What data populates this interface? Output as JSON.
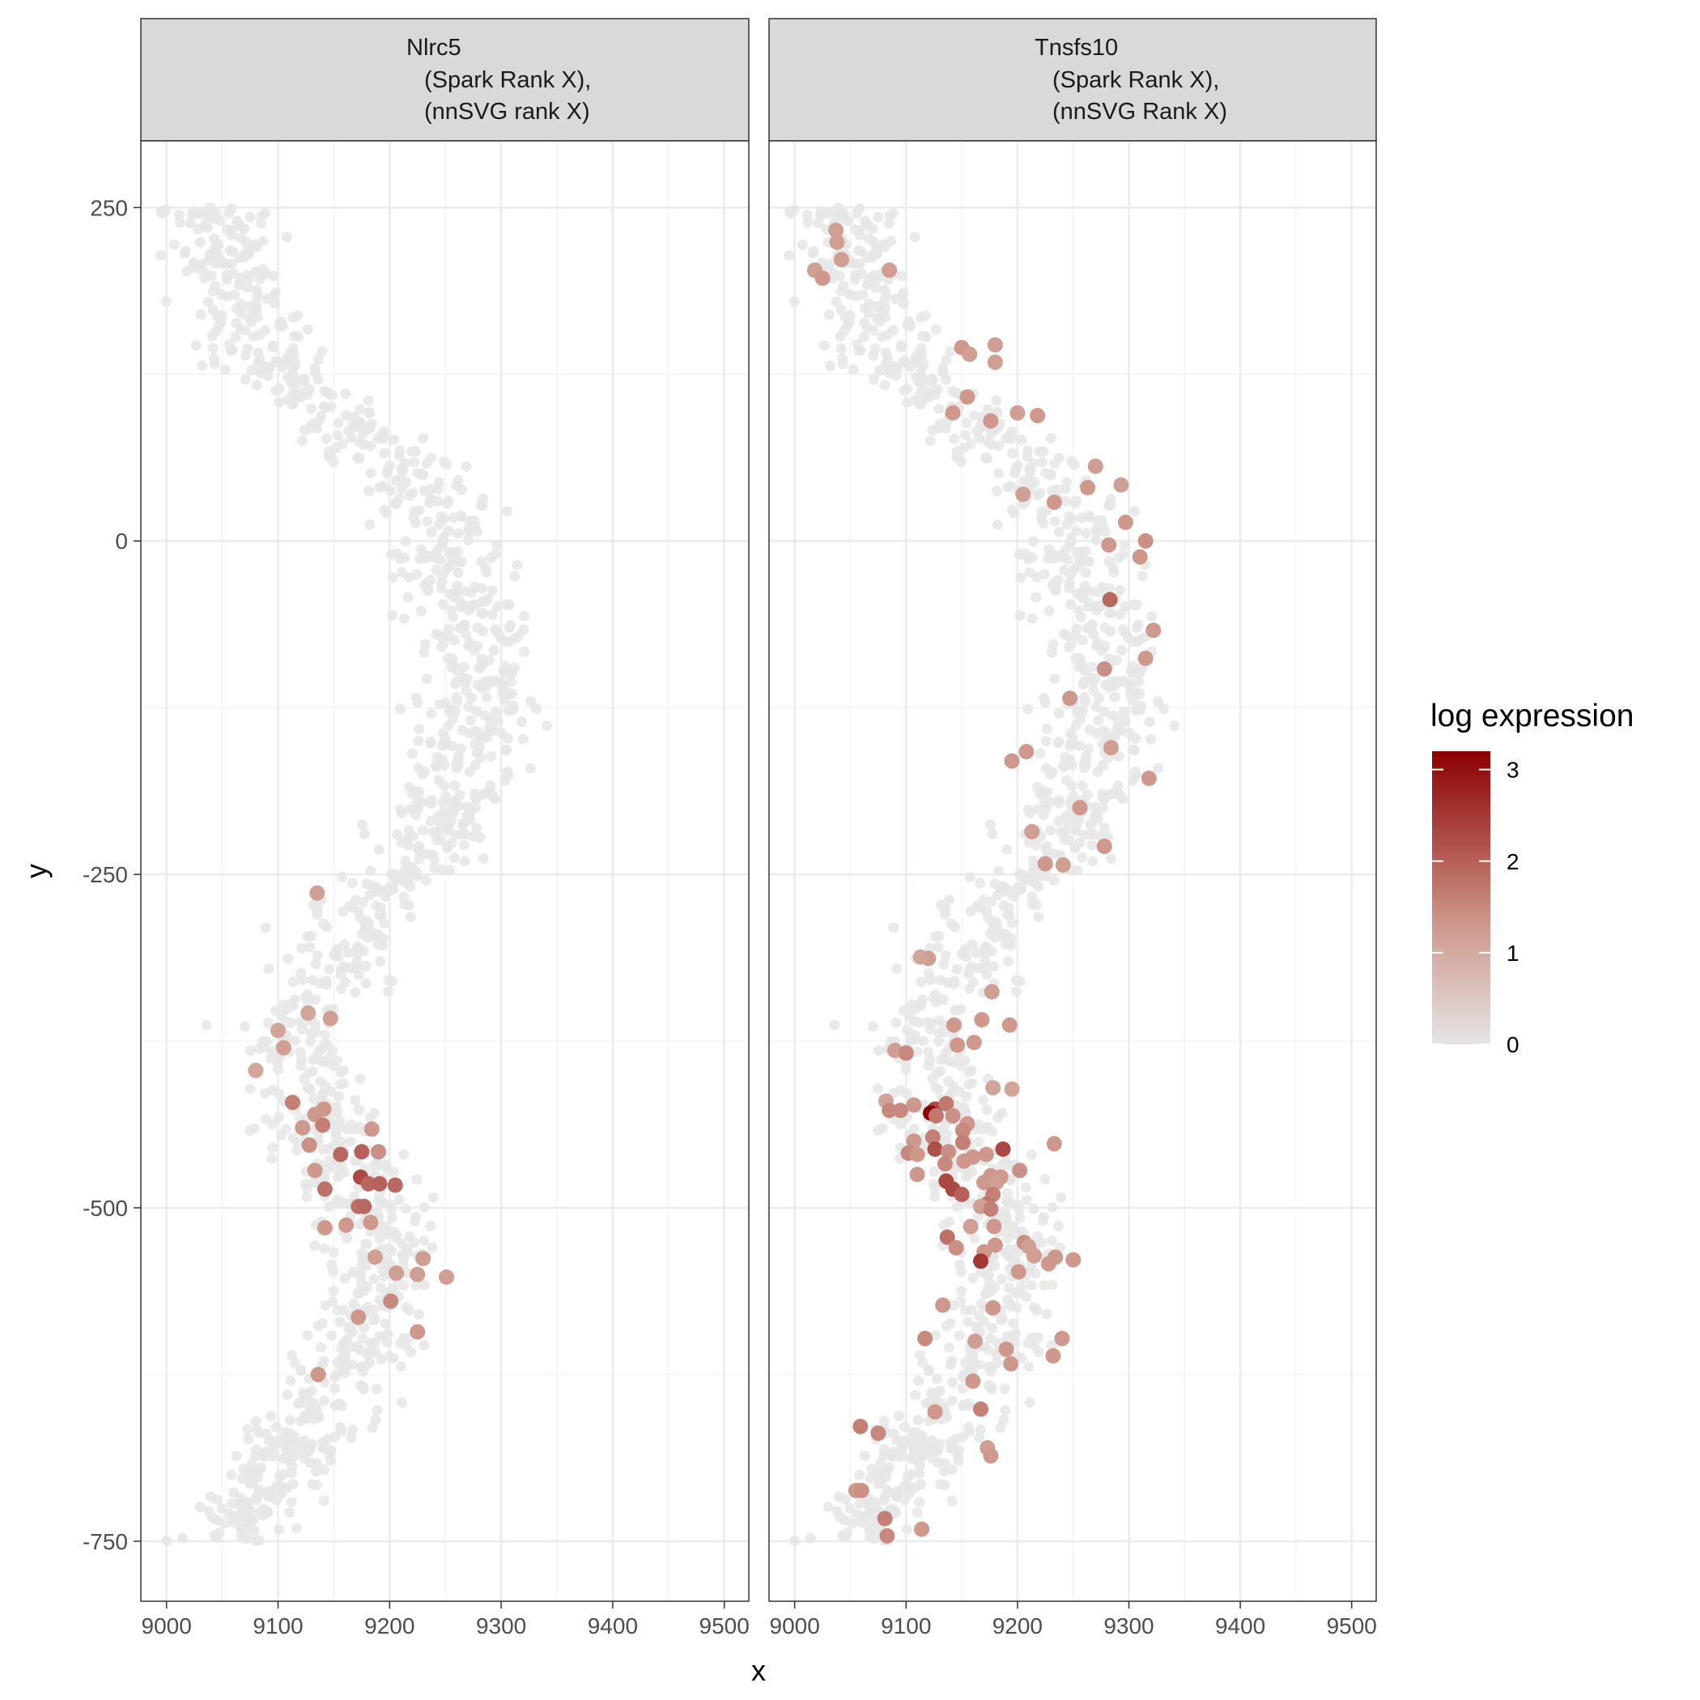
{
  "chart_data": {
    "type": "scatter",
    "facets": [
      {
        "title_lines": [
          "Nlrc5",
          "(Spark Rank X),",
          "(nnSVG rank X)"
        ],
        "points": [
          [
            9135,
            -264
          ],
          [
            9127,
            -354
          ],
          [
            9147,
            -358
          ],
          [
            9100,
            -367
          ],
          [
            9105,
            -380
          ],
          [
            9080,
            -397
          ],
          [
            9113,
            -421
          ],
          [
            9141,
            -426
          ],
          [
            9133,
            -430
          ],
          [
            9140,
            -438
          ],
          [
            9122,
            -440
          ],
          [
            9184,
            -441
          ],
          [
            9128,
            -453
          ],
          [
            9156,
            -460
          ],
          [
            9175,
            -458
          ],
          [
            9190,
            -458
          ],
          [
            9133,
            -472
          ],
          [
            9174,
            -477
          ],
          [
            9181,
            -482
          ],
          [
            9191,
            -482
          ],
          [
            9205,
            -483
          ],
          [
            9142,
            -486
          ],
          [
            9172,
            -499
          ],
          [
            9177,
            -499
          ],
          [
            9183,
            -511
          ],
          [
            9161,
            -513
          ],
          [
            9142,
            -515
          ],
          [
            9187,
            -537
          ],
          [
            9230,
            -538
          ],
          [
            9206,
            -549
          ],
          [
            9225,
            -550
          ],
          [
            9251,
            -552
          ],
          [
            9201,
            -570
          ],
          [
            9172,
            -582
          ],
          [
            9225,
            -593
          ],
          [
            9136,
            -625
          ]
        ],
        "values": [
          1.2,
          1.1,
          1.2,
          1.1,
          1.2,
          1.1,
          1.6,
          1.3,
          1.3,
          1.6,
          1.3,
          1.3,
          1.4,
          1.9,
          2.0,
          1.4,
          1.3,
          2.3,
          1.9,
          2.0,
          1.9,
          1.8,
          1.8,
          1.9,
          1.3,
          1.3,
          1.3,
          1.2,
          1.2,
          1.2,
          1.2,
          1.2,
          1.5,
          1.3,
          1.3,
          1.3
        ]
      },
      {
        "title_lines": [
          "Tnsfs10",
          "(Spark Rank X),",
          "(nnSVG Rank X)"
        ],
        "points": [
          [
            9037,
            233
          ],
          [
            9038,
            224
          ],
          [
            9042,
            211
          ],
          [
            9018,
            203
          ],
          [
            9025,
            197
          ],
          [
            9085,
            203
          ],
          [
            9150,
            145
          ],
          [
            9180,
            147
          ],
          [
            9157,
            140
          ],
          [
            9180,
            134
          ],
          [
            9155,
            108
          ],
          [
            9142,
            96
          ],
          [
            9200,
            96
          ],
          [
            9218,
            94
          ],
          [
            9176,
            90
          ],
          [
            9270,
            56
          ],
          [
            9293,
            42
          ],
          [
            9263,
            40
          ],
          [
            9205,
            35
          ],
          [
            9233,
            29
          ],
          [
            9297,
            14
          ],
          [
            9315,
            0
          ],
          [
            9282,
            -3
          ],
          [
            9310,
            -12
          ],
          [
            9283,
            -44
          ],
          [
            9322,
            -67
          ],
          [
            9315,
            -88
          ],
          [
            9278,
            -96
          ],
          [
            9247,
            -118
          ],
          [
            9284,
            -155
          ],
          [
            9208,
            -158
          ],
          [
            9195,
            -165
          ],
          [
            9318,
            -178
          ],
          [
            9256,
            -200
          ],
          [
            9213,
            -218
          ],
          [
            9278,
            -229
          ],
          [
            9225,
            -242
          ],
          [
            9241,
            -243
          ],
          [
            9120,
            -313
          ],
          [
            9113,
            -312
          ],
          [
            9177,
            -338
          ],
          [
            9168,
            -359
          ],
          [
            9143,
            -363
          ],
          [
            9193,
            -363
          ],
          [
            9161,
            -376
          ],
          [
            9090,
            -382
          ],
          [
            9146,
            -378
          ],
          [
            9100,
            -384
          ],
          [
            9178,
            -410
          ],
          [
            9195,
            -411
          ],
          [
            9082,
            -420
          ],
          [
            9107,
            -423
          ],
          [
            9085,
            -427
          ],
          [
            9095,
            -427
          ],
          [
            9126,
            -426
          ],
          [
            9122,
            -429
          ],
          [
            9136,
            -422
          ],
          [
            9127,
            -431
          ],
          [
            9142,
            -431
          ],
          [
            9155,
            -437
          ],
          [
            9124,
            -447
          ],
          [
            9151,
            -442
          ],
          [
            9107,
            -450
          ],
          [
            9126,
            -456
          ],
          [
            9138,
            -458
          ],
          [
            9151,
            -451
          ],
          [
            9172,
            -460
          ],
          [
            9187,
            -456
          ],
          [
            9102,
            -459
          ],
          [
            9110,
            -460
          ],
          [
            9152,
            -465
          ],
          [
            9160,
            -462
          ],
          [
            9233,
            -452
          ],
          [
            9135,
            -467
          ],
          [
            9202,
            -472
          ],
          [
            9110,
            -475
          ],
          [
            9176,
            -476
          ],
          [
            9185,
            -477
          ],
          [
            9170,
            -481
          ],
          [
            9181,
            -481
          ],
          [
            9136,
            -480
          ],
          [
            9142,
            -486
          ],
          [
            9150,
            -490
          ],
          [
            9178,
            -490
          ],
          [
            9173,
            -497
          ],
          [
            9158,
            -514
          ],
          [
            9179,
            -514
          ],
          [
            9167,
            -499
          ],
          [
            9176,
            -501
          ],
          [
            9137,
            -522
          ],
          [
            9145,
            -530
          ],
          [
            9180,
            -528
          ],
          [
            9206,
            -526
          ],
          [
            9170,
            -533
          ],
          [
            9215,
            -536
          ],
          [
            9210,
            -529
          ],
          [
            9234,
            -537
          ],
          [
            9250,
            -539
          ],
          [
            9228,
            -542
          ],
          [
            9167,
            -540
          ],
          [
            9201,
            -548
          ],
          [
            9133,
            -573
          ],
          [
            9178,
            -575
          ],
          [
            9117,
            -598
          ],
          [
            9162,
            -600
          ],
          [
            9240,
            -598
          ],
          [
            9190,
            -606
          ],
          [
            9232,
            -611
          ],
          [
            9194,
            -617
          ],
          [
            9160,
            -630
          ],
          [
            9167,
            -651
          ],
          [
            9126,
            -653
          ],
          [
            9059,
            -664
          ],
          [
            9075,
            -669
          ],
          [
            9055,
            -712
          ],
          [
            9060,
            -712
          ],
          [
            9081,
            -733
          ],
          [
            9083,
            -746
          ],
          [
            9114,
            -741
          ],
          [
            9173,
            -680
          ],
          [
            9176,
            -686
          ]
        ],
        "values": [
          1.2,
          1.2,
          1.2,
          1.2,
          1.3,
          1.2,
          1.3,
          1.2,
          1.2,
          1.2,
          1.3,
          1.3,
          1.2,
          1.3,
          1.3,
          1.2,
          1.2,
          1.3,
          1.2,
          1.3,
          1.3,
          1.4,
          1.3,
          1.3,
          1.9,
          1.3,
          1.3,
          1.4,
          1.3,
          1.2,
          1.3,
          1.3,
          1.3,
          1.3,
          1.2,
          1.3,
          1.3,
          1.2,
          1.2,
          1.1,
          1.2,
          1.3,
          1.3,
          1.3,
          1.3,
          1.2,
          1.3,
          1.5,
          1.1,
          1.1,
          1.1,
          1.3,
          1.5,
          1.5,
          2.3,
          3.2,
          1.7,
          1.7,
          1.4,
          1.3,
          1.6,
          1.5,
          1.3,
          2.2,
          1.4,
          1.6,
          1.3,
          2.3,
          1.5,
          1.3,
          1.3,
          1.3,
          1.3,
          1.5,
          1.4,
          1.3,
          1.3,
          1.3,
          1.3,
          1.2,
          2.3,
          2.3,
          2.0,
          1.6,
          1.7,
          1.2,
          1.3,
          1.2,
          1.6,
          1.8,
          1.4,
          1.3,
          1.4,
          1.3,
          1.2,
          1.2,
          1.3,
          1.3,
          1.3,
          2.5,
          1.3,
          1.3,
          1.3,
          1.5,
          1.2,
          1.3,
          1.3,
          1.3,
          1.3,
          1.3,
          1.6,
          1.3,
          1.6,
          1.5,
          1.3,
          1.4,
          1.6,
          1.5,
          1.3,
          1.2,
          1.3
        ]
      }
    ],
    "background_points": {
      "count_per_facet": 1340,
      "color": "#e6e6e6",
      "value": 0
    },
    "x_axis": {
      "label": "x",
      "range": [
        8977,
        9522
      ],
      "ticks": [
        9000,
        9100,
        9200,
        9300,
        9400,
        9500
      ]
    },
    "y_axis": {
      "label": "y",
      "range": [
        -795,
        300
      ],
      "ticks": [
        250,
        0,
        -250,
        -500,
        -750
      ]
    },
    "legend": {
      "title": "log expression",
      "placement": "right",
      "range": [
        0,
        3.2
      ],
      "ticks": [
        0,
        1,
        2,
        3
      ],
      "color_low": "#e5e5e5",
      "color_mid": "#cf9a8e",
      "color_high": "#8b0000"
    },
    "grid": true
  }
}
